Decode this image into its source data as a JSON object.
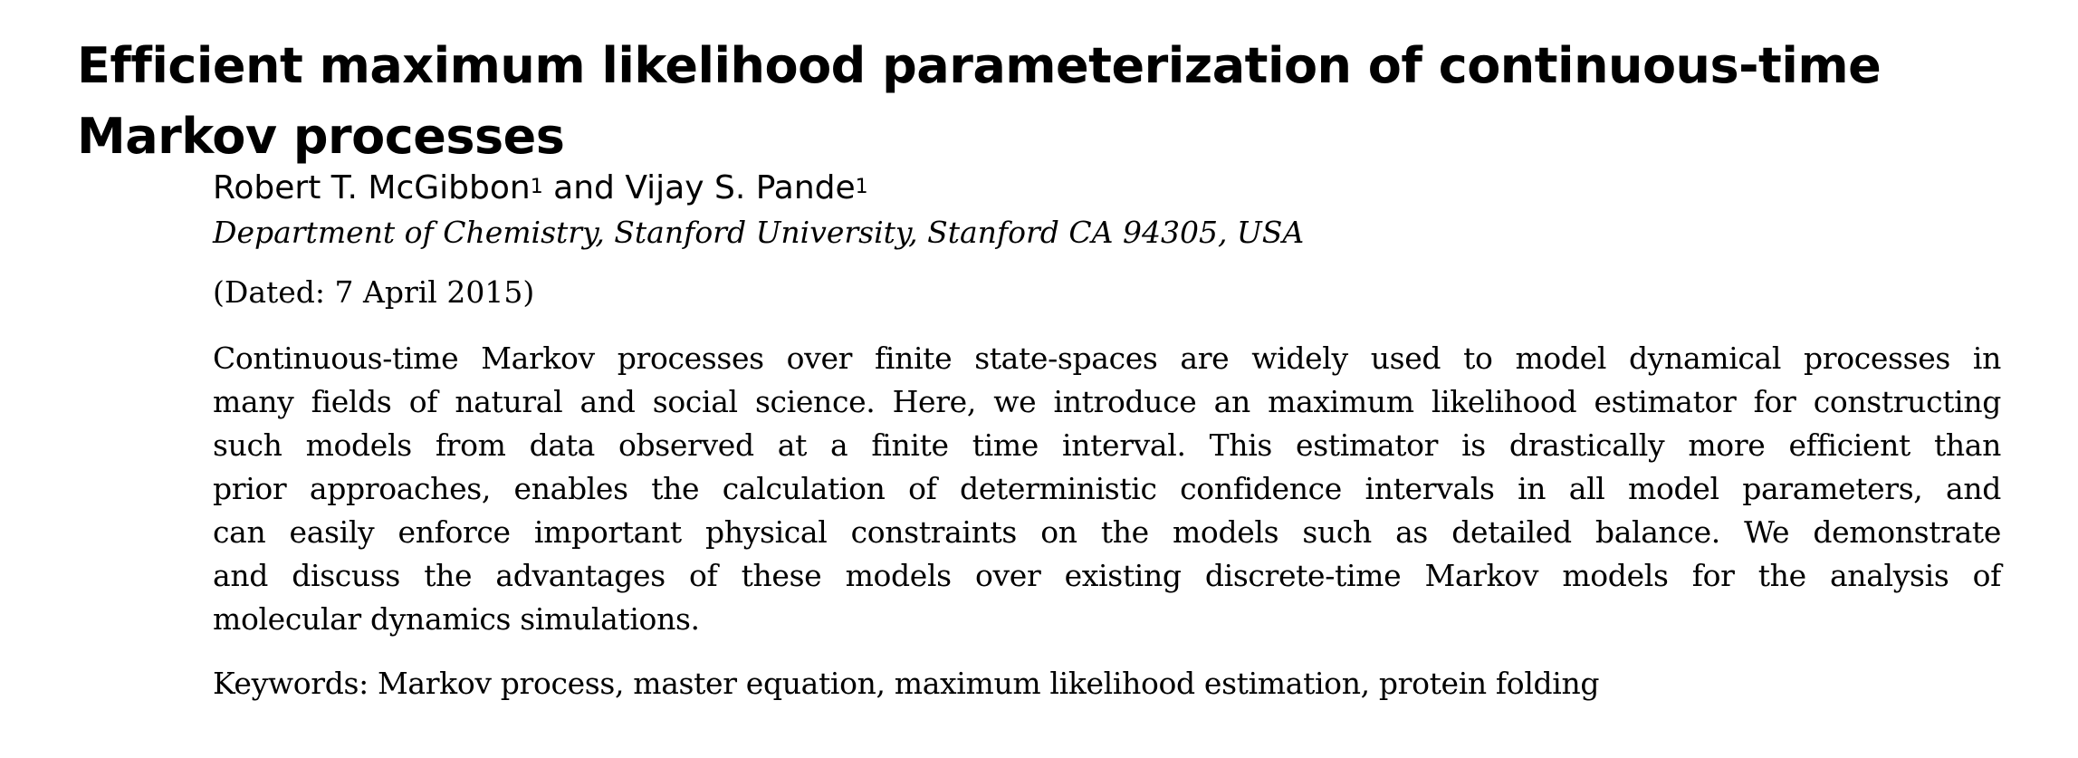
{
  "paper": {
    "title": "Efficient maximum likelihood parameterization of continuous-time Markov processes",
    "authors": {
      "author1_name": "Robert T. McGibbon",
      "author1_sup": "1",
      "conjunction": " and ",
      "author2_name": "Vijay S. Pande",
      "author2_sup": "1"
    },
    "affiliation": "Department of Chemistry, Stanford University, Stanford CA 94305, USA",
    "dated": "(Dated: 7 April 2015)",
    "abstract_lines": [
      "Continuous-time Markov processes over finite state-spaces are widely used to model dynamical processes in",
      "many fields of natural and social science.  Here, we introduce an maximum likelihood estimator for constructing",
      "such models from data observed at a finite time interval.  This estimator is drastically more efficient than",
      "prior approaches, enables the calculation of deterministic confidence intervals in all model parameters, and",
      "can easily enforce important physical constraints on the models such as detailed balance.  We demonstrate",
      "and discuss the advantages of these models over existing discrete-time Markov models for the analysis of",
      "molecular dynamics simulations."
    ],
    "keywords": "Keywords: Markov process, master equation, maximum likelihood estimation, protein folding"
  }
}
